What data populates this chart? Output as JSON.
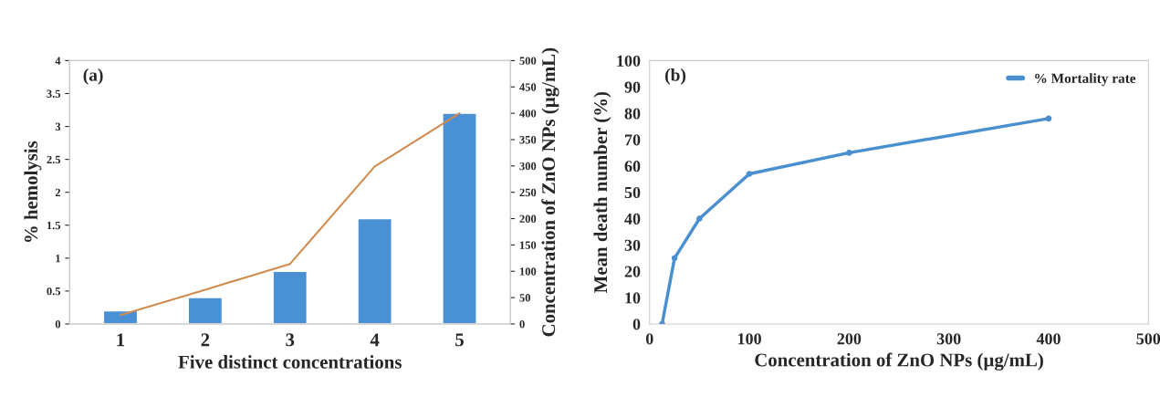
{
  "chart_data": [
    {
      "type": "bar",
      "categories": [
        "1",
        "2",
        "3",
        "4",
        "5"
      ],
      "series": [
        {
          "color": "#4a90d4",
          "values": [
            0.2,
            0.4,
            0.8,
            1.6,
            3.2
          ]
        },
        {
          "type": "line",
          "axis": "y2",
          "color": "#d08b4f",
          "values": [
            17,
            65,
            114,
            299,
            400
          ]
        }
      ],
      "xlabel": "Five distinct concentrations",
      "ylabel": "% hemolysis",
      "y2label": "Concentration of ZnO NPs (µg/mL)",
      "ylim": [
        0,
        4
      ],
      "yticks": [
        0,
        0.5,
        1,
        1.5,
        2,
        2.5,
        3,
        3.5,
        4
      ],
      "y2lim": [
        0,
        500
      ],
      "y2ticks": [
        0,
        50,
        100,
        150,
        200,
        250,
        300,
        350,
        400,
        450,
        500
      ],
      "annotations": [
        "(a)"
      ]
    },
    {
      "type": "line",
      "x": [
        12.5,
        25,
        50,
        100,
        200,
        400
      ],
      "series": [
        {
          "name": "% Mortality rate",
          "color": "#4a8fd0",
          "values": [
            0,
            25,
            40,
            57,
            65,
            78
          ]
        }
      ],
      "xlabel": "Concentration of ZnO NPs (µg/mL)",
      "ylabel": "Mean death number (%)",
      "xlim": [
        0,
        500
      ],
      "xticks": [
        0,
        100,
        200,
        300,
        400,
        500
      ],
      "ylim": [
        0,
        100
      ],
      "yticks": [
        0,
        10,
        20,
        30,
        40,
        50,
        60,
        70,
        80,
        90,
        100
      ],
      "marker": "circle",
      "legend": "top right",
      "annotations": [
        "(b)"
      ]
    }
  ]
}
